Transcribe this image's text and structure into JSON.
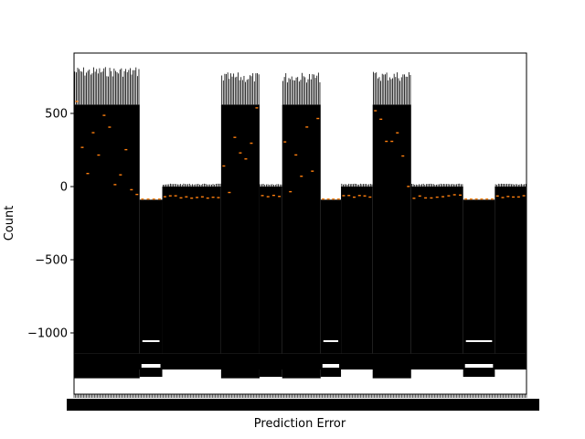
{
  "chart_data": {
    "type": "box",
    "title": "",
    "xlabel": "Prediction Error",
    "ylabel": "Count",
    "ylim": [
      -1400,
      900
    ],
    "yticks": [
      500,
      0,
      -500,
      -1000
    ],
    "ytick_labels": [
      "500",
      "0",
      "−500",
      "−1000"
    ],
    "x_tick_labels_note": "dense, overlapping, unreadable tick labels along the x axis",
    "grid": false,
    "legend": "none",
    "colors": {
      "box": "#000000",
      "median": "#ff7f0e",
      "background": "#ffffff"
    },
    "segments": [
      {
        "x_range": [
          0.0,
          0.145
        ],
        "kind": "high",
        "whisker_high": 820,
        "box_top": 560,
        "whisker_low": -1310,
        "median_min": -90,
        "median_max": 670
      },
      {
        "x_range": [
          0.145,
          0.195
        ],
        "kind": "low",
        "whisker_high": -90,
        "box_top": -90,
        "whisker_low": -1300,
        "median_min": -85,
        "median_max": -85
      },
      {
        "x_range": [
          0.195,
          0.325
        ],
        "kind": "low",
        "whisker_high": 20,
        "box_top": 0,
        "whisker_low": -1250,
        "median_min": -80,
        "median_max": -60
      },
      {
        "x_range": [
          0.325,
          0.41
        ],
        "kind": "high",
        "whisker_high": 780,
        "box_top": 560,
        "whisker_low": -1310,
        "median_min": -60,
        "median_max": 600
      },
      {
        "x_range": [
          0.41,
          0.46
        ],
        "kind": "low",
        "whisker_high": 20,
        "box_top": 0,
        "whisker_low": -1300,
        "median_min": -80,
        "median_max": -60
      },
      {
        "x_range": [
          0.46,
          0.545
        ],
        "kind": "high",
        "whisker_high": 780,
        "box_top": 560,
        "whisker_low": -1310,
        "median_min": -60,
        "median_max": 650
      },
      {
        "x_range": [
          0.545,
          0.59
        ],
        "kind": "low",
        "whisker_high": -90,
        "box_top": -90,
        "whisker_low": -1300,
        "median_min": -85,
        "median_max": -85
      },
      {
        "x_range": [
          0.59,
          0.66
        ],
        "kind": "low",
        "whisker_high": 20,
        "box_top": 0,
        "whisker_low": -1250,
        "median_min": -80,
        "median_max": -60
      },
      {
        "x_range": [
          0.66,
          0.745
        ],
        "kind": "high",
        "whisker_high": 790,
        "box_top": 560,
        "whisker_low": -1310,
        "median_min": -60,
        "median_max": 640
      },
      {
        "x_range": [
          0.745,
          0.86
        ],
        "kind": "low",
        "whisker_high": 20,
        "box_top": 0,
        "whisker_low": -1250,
        "median_min": -80,
        "median_max": -55
      },
      {
        "x_range": [
          0.86,
          0.93
        ],
        "kind": "low",
        "whisker_high": -90,
        "box_top": -90,
        "whisker_low": -1300,
        "median_min": -85,
        "median_max": -85
      },
      {
        "x_range": [
          0.93,
          1.0
        ],
        "kind": "low",
        "whisker_high": 20,
        "box_top": 0,
        "whisker_low": -1250,
        "median_min": -80,
        "median_max": -60
      }
    ],
    "outlier_lines": [
      {
        "x_range": [
          0.145,
          0.195
        ],
        "y": -1050
      },
      {
        "x_range": [
          0.545,
          0.59
        ],
        "y": -1050
      },
      {
        "x_range": [
          0.86,
          0.93
        ],
        "y": -1050
      }
    ]
  }
}
